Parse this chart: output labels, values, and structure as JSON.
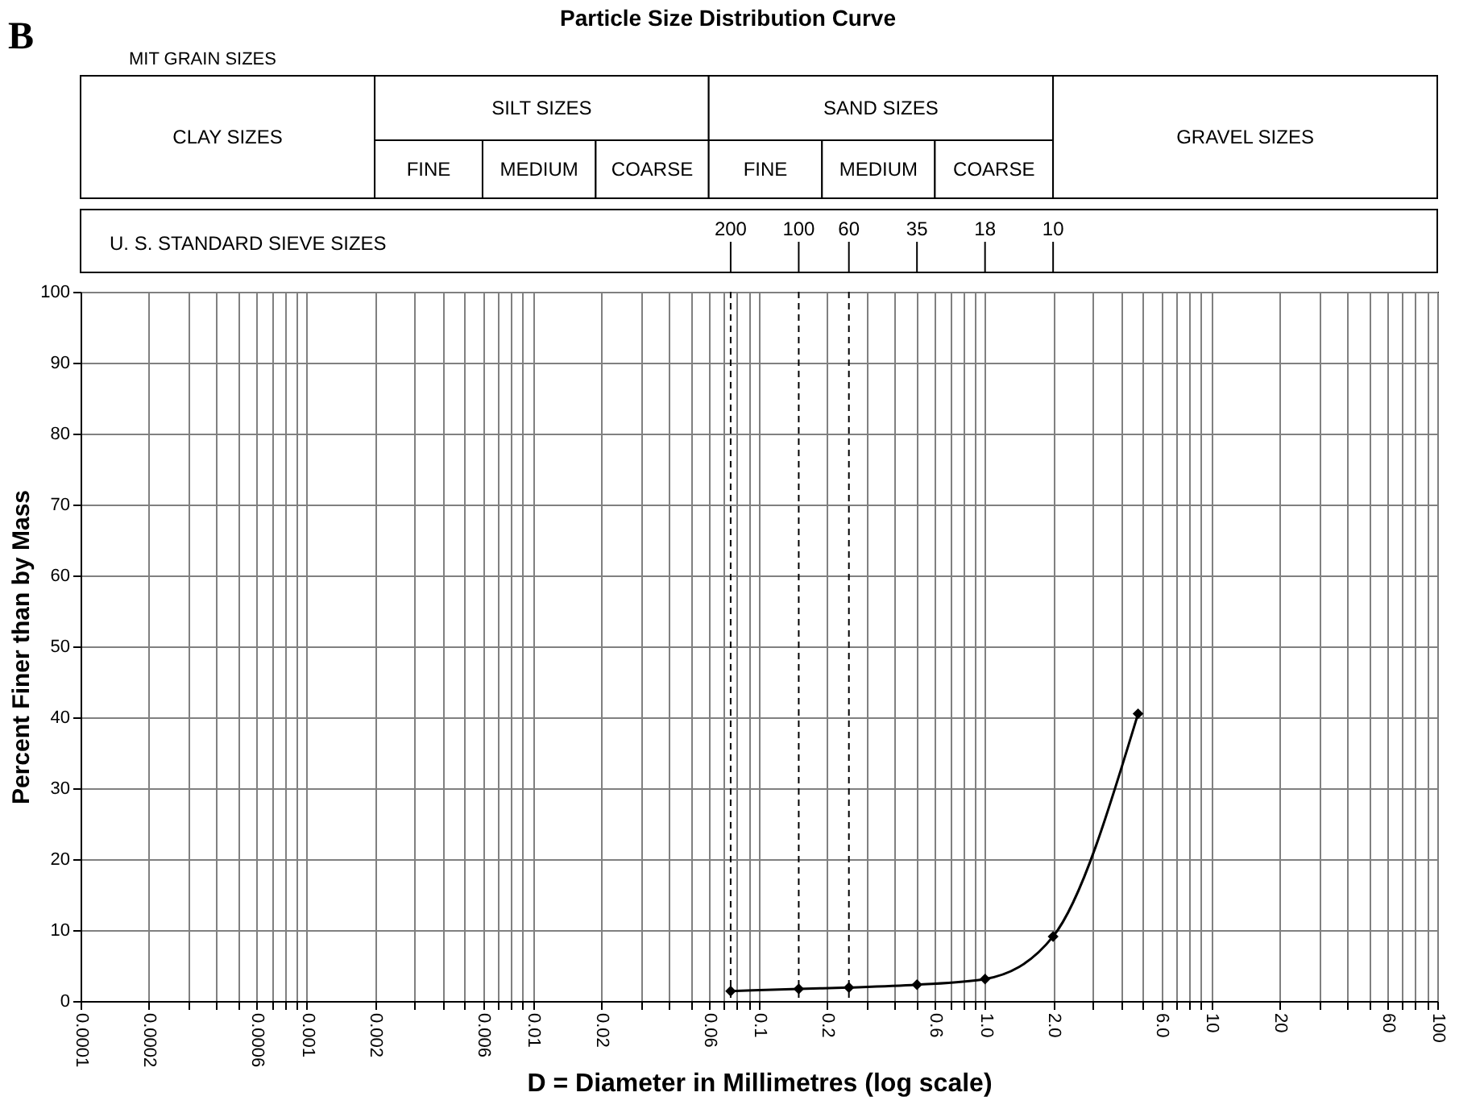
{
  "chart_data": {
    "type": "line",
    "title": "Particle Size Distribution Curve",
    "xlabel": "D = Diameter in Millimetres (log scale)",
    "ylabel": "Percent Finer than by Mass",
    "x": [
      0.075,
      0.15,
      0.25,
      0.5,
      1.0,
      2.0,
      4.75
    ],
    "series": [
      {
        "color": "#000000",
        "values": [
          1.4,
          1.7,
          1.9,
          2.3,
          3.1,
          9.1,
          40.5
        ]
      }
    ],
    "log": "x",
    "xlim": [
      0.0001,
      100
    ],
    "xticks": [
      0.0001,
      0.0002,
      {
        "value": 0.0003,
        "label": null
      },
      {
        "value": 0.0004,
        "label": null
      },
      {
        "value": 0.0005,
        "label": null
      },
      0.0006,
      {
        "value": 0.0007,
        "label": null
      },
      {
        "value": 0.0008,
        "label": null
      },
      {
        "value": 0.0009,
        "label": null
      },
      0.001,
      0.002,
      {
        "value": 0.003,
        "label": null
      },
      {
        "value": 0.004,
        "label": null
      },
      {
        "value": 0.005,
        "label": null
      },
      0.006,
      {
        "value": 0.007,
        "label": null
      },
      {
        "value": 0.008,
        "label": null
      },
      {
        "value": 0.009,
        "label": null
      },
      0.01,
      0.02,
      {
        "value": 0.03,
        "label": null
      },
      {
        "value": 0.04,
        "label": null
      },
      {
        "value": 0.05,
        "label": null
      },
      0.06,
      {
        "value": 0.07,
        "label": null
      },
      {
        "value": 0.08,
        "label": null
      },
      {
        "value": 0.09,
        "label": null
      },
      0.1,
      0.2,
      {
        "value": 0.3,
        "label": null
      },
      {
        "value": 0.4,
        "label": null
      },
      {
        "value": 0.5,
        "label": null
      },
      0.6,
      {
        "value": 0.7,
        "label": null
      },
      {
        "value": 0.8,
        "label": null
      },
      {
        "value": 0.9,
        "label": null
      },
      {
        "value": 1,
        "label": "1.0"
      },
      {
        "value": 2,
        "label": "2.0"
      },
      {
        "value": 3,
        "label": null
      },
      {
        "value": 4,
        "label": null
      },
      {
        "value": 5,
        "label": null
      },
      {
        "value": 6,
        "label": "6.0"
      },
      {
        "value": 7,
        "label": null
      },
      {
        "value": 8,
        "label": null
      },
      {
        "value": 9,
        "label": null
      },
      10,
      20,
      {
        "value": 30,
        "label": null
      },
      {
        "value": 40,
        "label": null
      },
      {
        "value": 50,
        "label": null
      },
      60,
      {
        "value": 70,
        "label": null
      },
      {
        "value": 80,
        "label": null
      },
      {
        "value": 90,
        "label": null
      },
      100
    ],
    "ylim": [
      0,
      100
    ],
    "yticks": [
      0,
      10,
      20,
      30,
      40,
      50,
      60,
      70,
      80,
      90,
      100
    ],
    "grid": true,
    "marker": "diamond",
    "line_style": "solid",
    "ref_lines": [
      {
        "axis": "x",
        "value": 0.075,
        "line_style": "dashed"
      },
      {
        "axis": "x",
        "value": 0.15,
        "line_style": "dashed"
      },
      {
        "axis": "x",
        "value": 0.25,
        "line_style": "dashed"
      }
    ],
    "annotations": [
      "B",
      "MIT GRAIN SIZES",
      "U. S. STANDARD SIEVE SIZES",
      "CLAY SIZES",
      "SILT SIZES",
      "FINE",
      "MEDIUM",
      "COARSE",
      "SAND SIZES",
      "FINE",
      "MEDIUM",
      "COARSE",
      "GRAVEL SIZES",
      {
        "text": "200",
        "x": 0.075
      },
      {
        "text": "100",
        "x": 0.15
      },
      {
        "text": "60",
        "x": 0.25
      },
      {
        "text": "35",
        "x": 0.5
      },
      {
        "text": "18",
        "x": 1.0
      },
      {
        "text": "10",
        "x": 2.0
      }
    ]
  }
}
